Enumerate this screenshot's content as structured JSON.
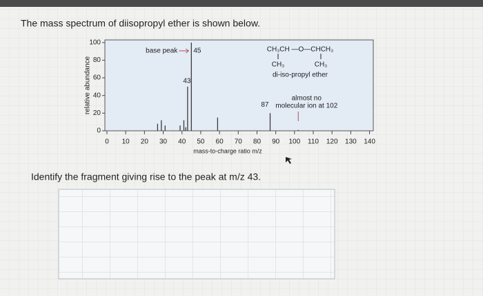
{
  "question": {
    "title": "The mass spectrum of diisopropyl ether is shown below.",
    "prompt": "Identify the fragment giving rise to the peak at m/z 43."
  },
  "chart_data": {
    "type": "stick",
    "x": [
      27,
      29,
      31,
      39,
      41,
      42,
      43,
      45,
      59,
      87,
      102
    ],
    "values": [
      8,
      12,
      6,
      6,
      12,
      4,
      50,
      100,
      15,
      20,
      1
    ],
    "color": "#3a3a3a",
    "xlim": [
      0,
      142
    ],
    "ylim": [
      0,
      103
    ],
    "xticks": [
      0,
      10,
      20,
      30,
      40,
      50,
      60,
      70,
      80,
      90,
      100,
      110,
      120,
      130,
      140
    ],
    "yticks": [
      0,
      20,
      40,
      60,
      80,
      100
    ],
    "xlabel": "mass-to-charge ratio m/z",
    "ylabel": "relative abundance",
    "base_peak_label": "base peak",
    "molecular_ion_note": [
      "almost no",
      "molecular ion at 102"
    ],
    "structure": [
      "CH₃CH —O—CHCH₃",
      "CH₃",
      "CH₃",
      "di-iso-propyl ether"
    ]
  }
}
